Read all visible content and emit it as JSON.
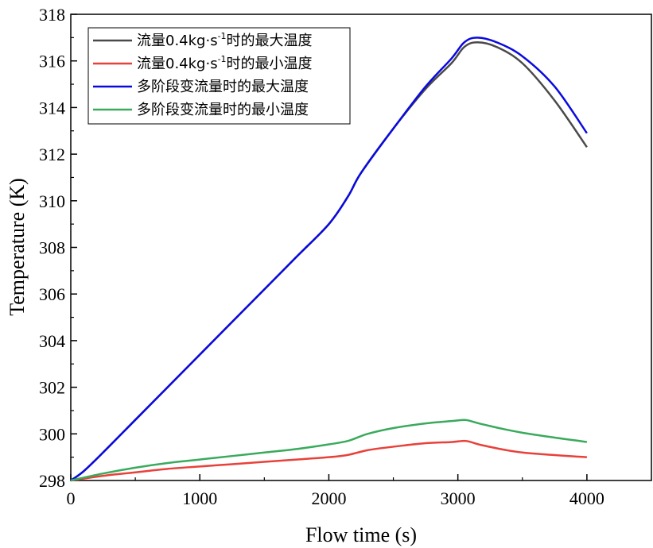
{
  "chart_data": {
    "type": "line",
    "xlabel": "Flow time (s)",
    "ylabel": "Temperature (K)",
    "xlim": [
      0,
      4500
    ],
    "ylim": [
      298,
      318
    ],
    "xticks": [
      0,
      1000,
      2000,
      3000,
      4000
    ],
    "yticks": [
      298,
      300,
      302,
      304,
      306,
      308,
      310,
      312,
      314,
      316,
      318
    ],
    "grid": false,
    "legend_position": "top-left",
    "series": [
      {
        "name": "流量0.4kg·s⁻¹时的最大温度",
        "legend_parts": [
          "流量0.4kg·s",
          "-1",
          "时的最大温度"
        ],
        "color": "#4a4a4a",
        "x": [
          0,
          100,
          250,
          500,
          750,
          1000,
          1250,
          1500,
          1750,
          2000,
          2150,
          2250,
          2500,
          2750,
          2950,
          3050,
          3150,
          3300,
          3500,
          3750,
          4000
        ],
        "y": [
          298.0,
          298.4,
          299.2,
          300.6,
          302.0,
          303.4,
          304.8,
          306.2,
          307.6,
          309.0,
          310.2,
          311.2,
          313.1,
          314.8,
          315.9,
          316.6,
          316.8,
          316.6,
          315.9,
          314.3,
          312.3
        ]
      },
      {
        "name": "流量0.4kg·s⁻¹时的最小温度",
        "legend_parts": [
          "流量0.4kg·s",
          "-1",
          "时的最小温度"
        ],
        "color": "#e8413a",
        "x": [
          0,
          250,
          500,
          750,
          1000,
          1250,
          1500,
          1750,
          2000,
          2150,
          2300,
          2500,
          2750,
          2950,
          3050,
          3100,
          3200,
          3500,
          4000
        ],
        "y": [
          298.0,
          298.2,
          298.35,
          298.5,
          298.6,
          298.7,
          298.8,
          298.9,
          299.0,
          299.1,
          299.3,
          299.45,
          299.6,
          299.65,
          299.7,
          299.65,
          299.5,
          299.2,
          299.0
        ]
      },
      {
        "name": "多阶段变流量时的最大温度",
        "legend_parts": [
          "多阶段变流量时的最大温度",
          "",
          ""
        ],
        "color": "#0a0ae0",
        "x": [
          0,
          100,
          250,
          500,
          750,
          1000,
          1250,
          1500,
          1750,
          2000,
          2150,
          2250,
          2500,
          2750,
          2950,
          3050,
          3150,
          3300,
          3500,
          3750,
          4000
        ],
        "y": [
          298.0,
          298.4,
          299.2,
          300.6,
          302.0,
          303.4,
          304.8,
          306.2,
          307.6,
          309.0,
          310.2,
          311.2,
          313.1,
          314.9,
          316.1,
          316.8,
          317.0,
          316.8,
          316.2,
          314.9,
          312.9
        ]
      },
      {
        "name": "多阶段变流量时的最小温度",
        "legend_parts": [
          "多阶段变流量时的最小温度",
          "",
          ""
        ],
        "color": "#3aaa5c",
        "x": [
          0,
          250,
          500,
          750,
          1000,
          1250,
          1500,
          1750,
          2000,
          2150,
          2300,
          2500,
          2750,
          2950,
          3050,
          3100,
          3200,
          3500,
          4000
        ],
        "y": [
          298.0,
          298.3,
          298.55,
          298.75,
          298.9,
          299.05,
          299.2,
          299.35,
          299.55,
          299.7,
          300.0,
          300.25,
          300.45,
          300.55,
          300.6,
          300.55,
          300.4,
          300.05,
          299.65
        ]
      }
    ]
  }
}
